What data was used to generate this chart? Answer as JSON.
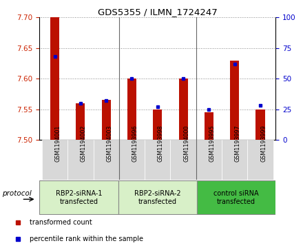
{
  "title": "GDS5355 / ILMN_1724247",
  "samples": [
    "GSM1194001",
    "GSM1194002",
    "GSM1194003",
    "GSM1193996",
    "GSM1193998",
    "GSM1194000",
    "GSM1193995",
    "GSM1193997",
    "GSM1193999"
  ],
  "red_values": [
    7.7,
    7.56,
    7.565,
    7.6,
    7.55,
    7.6,
    7.545,
    7.63,
    7.55
  ],
  "blue_values_pct": [
    68,
    30,
    32,
    50,
    27,
    50,
    25,
    62,
    28
  ],
  "ylim_left": [
    7.5,
    7.7
  ],
  "ylim_right": [
    0,
    100
  ],
  "yticks_left": [
    7.5,
    7.55,
    7.6,
    7.65,
    7.7
  ],
  "yticks_right": [
    0,
    25,
    50,
    75,
    100
  ],
  "groups": [
    {
      "label": "RBP2-siRNA-1\ntransfected",
      "start": 0,
      "end": 3,
      "color": "#d8f0c8"
    },
    {
      "label": "RBP2-siRNA-2\ntransfected",
      "start": 3,
      "end": 6,
      "color": "#d8f0c8"
    },
    {
      "label": "control siRNA\ntransfected",
      "start": 6,
      "end": 9,
      "color": "#44bb44"
    }
  ],
  "bar_color": "#bb1100",
  "blue_color": "#0000cc",
  "tick_color_left": "#cc2200",
  "tick_color_right": "#0000cc",
  "grid_color": "#888888",
  "sample_bg": "#d8d8d8",
  "plot_bg": "#ffffff",
  "bar_width": 0.35,
  "protocol_label": "protocol",
  "legend_items": [
    {
      "color": "#bb1100",
      "label": "transformed count"
    },
    {
      "color": "#0000cc",
      "label": "percentile rank within the sample"
    }
  ]
}
